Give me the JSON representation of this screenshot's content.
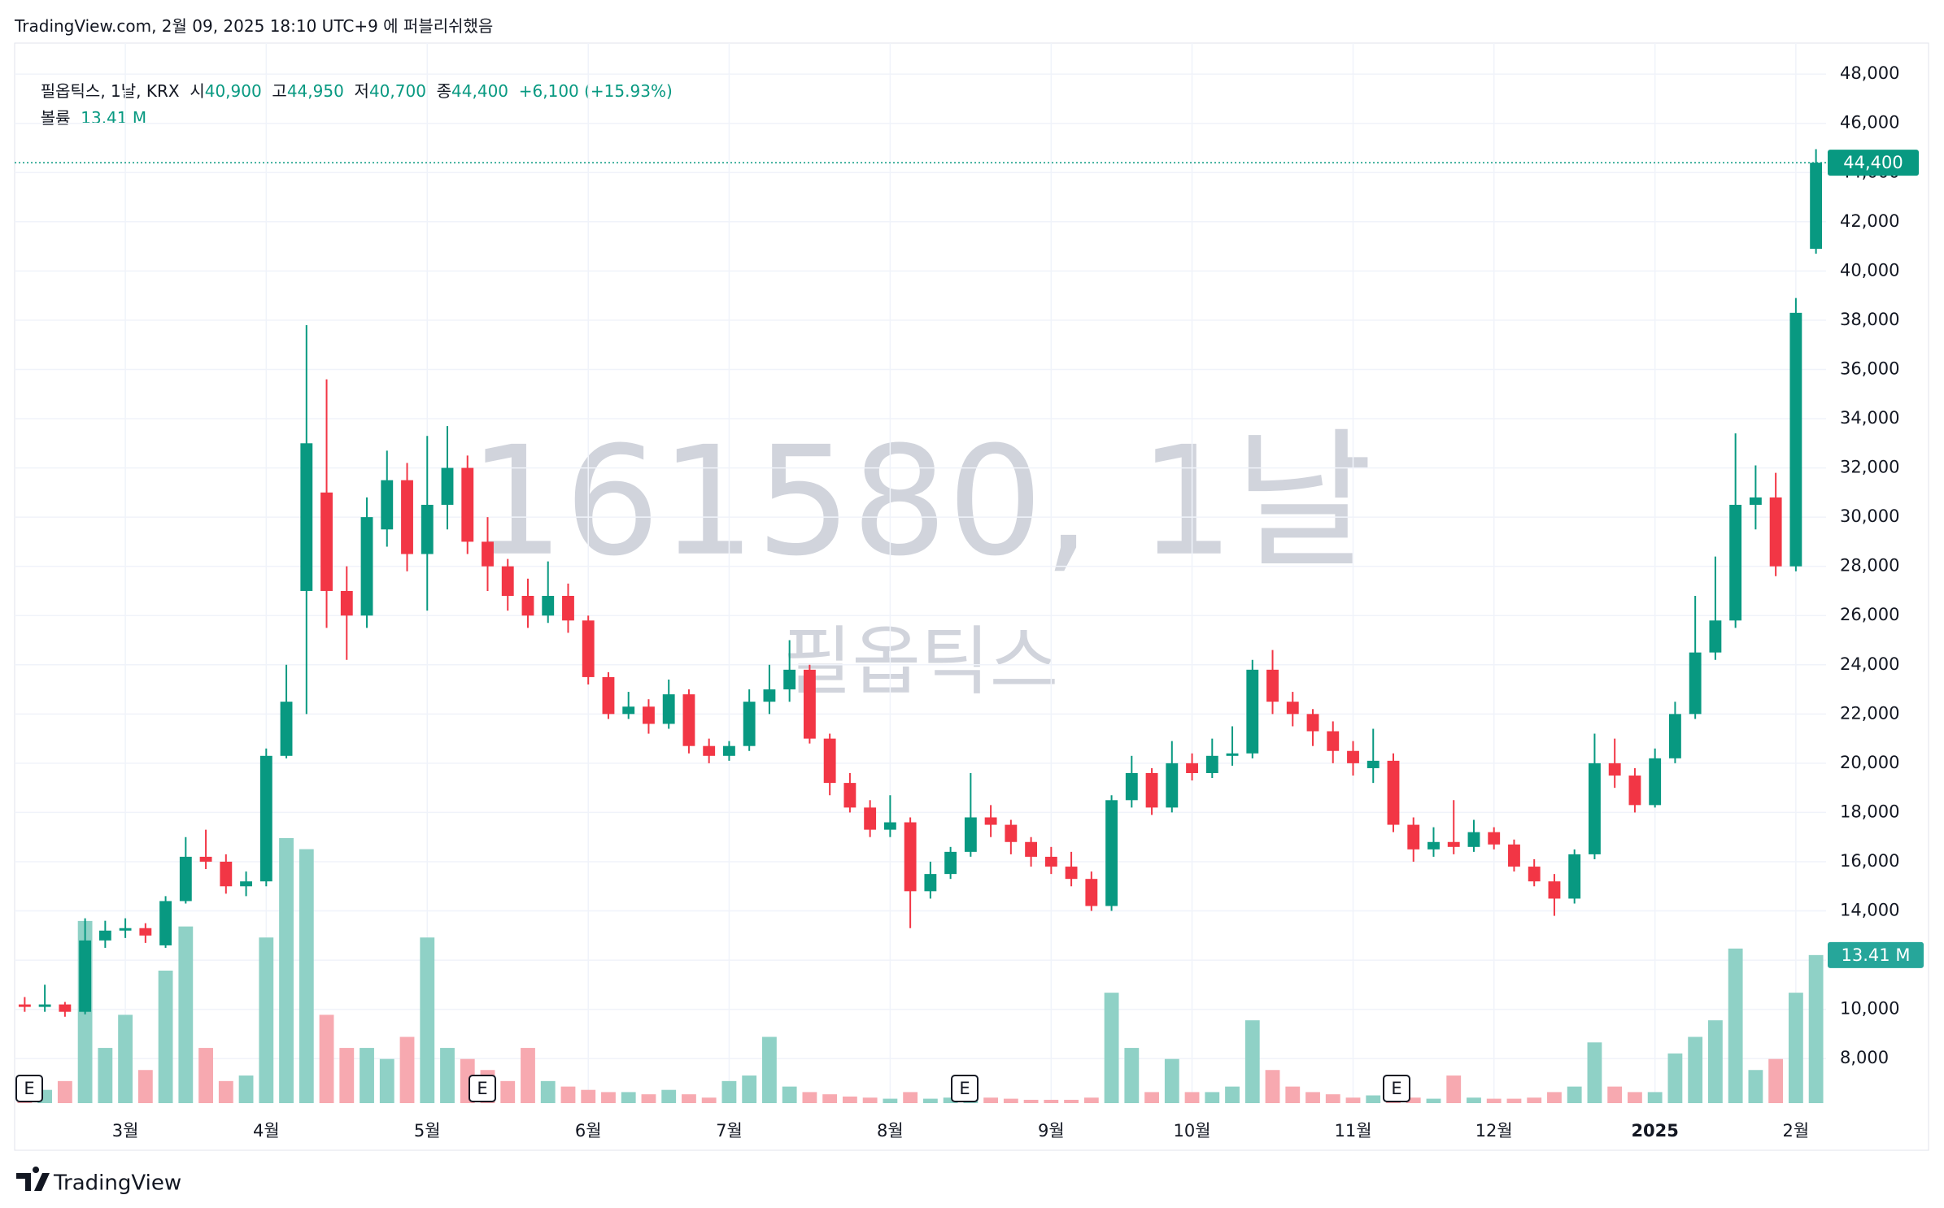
{
  "header": "TradingView.com, 2월 09, 2025 18:10 UTC+9 에 퍼블리쉬했음",
  "footer": "TradingView",
  "chart_data": {
    "type": "candlestick",
    "watermark": "161580, 1날",
    "watermark_name": "필옵틱스",
    "earnings_marker": "E",
    "legend": {
      "name": "필옵틱스, 1날, KRX",
      "open_label": "시",
      "open": {
        "value": 40900,
        "label": "40,900"
      },
      "high_label": "고",
      "high": {
        "value": 44950,
        "label": "44,950"
      },
      "low_label": "저",
      "low": {
        "value": 40700,
        "label": "40,700"
      },
      "close_label": "종",
      "close": {
        "value": 44400,
        "label": "44,400"
      },
      "change": {
        "value": 6100,
        "label": "+6,100"
      },
      "change_pct": {
        "value": 15.93,
        "label": "(+15.93%)"
      },
      "volume_name": "볼륨",
      "volume": {
        "value": 13.41,
        "label": "13.41 M"
      }
    },
    "up_color": "#089981",
    "down_color": "#f23645",
    "volume_up_color": "#8fd1c6",
    "volume_down_color": "#f7a9b0",
    "grid": true,
    "categories": [
      null,
      null,
      null,
      null,
      null,
      "3월",
      null,
      null,
      null,
      null,
      null,
      null,
      "4월",
      null,
      null,
      null,
      null,
      null,
      null,
      null,
      "5월",
      null,
      null,
      null,
      null,
      null,
      null,
      null,
      "6월",
      null,
      null,
      null,
      null,
      null,
      null,
      "7월",
      null,
      null,
      null,
      null,
      null,
      null,
      null,
      "8월",
      null,
      null,
      null,
      null,
      null,
      null,
      null,
      "9월",
      null,
      null,
      null,
      null,
      null,
      null,
      "10월",
      null,
      null,
      null,
      null,
      null,
      null,
      null,
      "11월",
      null,
      null,
      null,
      null,
      null,
      null,
      "12월",
      null,
      null,
      null,
      null,
      null,
      null,
      null,
      "2025",
      null,
      null,
      null,
      null,
      null,
      null,
      "2월",
      null
    ],
    "ohlc": [
      [
        10200,
        10500,
        9900,
        10100
      ],
      [
        10100,
        11000,
        9900,
        10200
      ],
      [
        10200,
        10300,
        9700,
        9900
      ],
      [
        9900,
        13700,
        9800,
        12800
      ],
      [
        12800,
        13600,
        12500,
        13200
      ],
      [
        13200,
        13700,
        12900,
        13300
      ],
      [
        13300,
        13500,
        12700,
        13000
      ],
      [
        12600,
        14600,
        12500,
        14400
      ],
      [
        14400,
        17000,
        14300,
        16200
      ],
      [
        16200,
        17300,
        15700,
        16000
      ],
      [
        16000,
        16300,
        14700,
        15000
      ],
      [
        15000,
        15600,
        14600,
        15200
      ],
      [
        15200,
        20600,
        15000,
        20300
      ],
      [
        20300,
        24000,
        20200,
        22500
      ],
      [
        27000,
        37800,
        22000,
        33000
      ],
      [
        31000,
        35600,
        25500,
        27000
      ],
      [
        27000,
        28000,
        24200,
        26000
      ],
      [
        26000,
        30800,
        25500,
        30000
      ],
      [
        29500,
        32700,
        28800,
        31500
      ],
      [
        31500,
        32200,
        27800,
        28500
      ],
      [
        28500,
        33300,
        26200,
        30500
      ],
      [
        30500,
        33700,
        29500,
        32000
      ],
      [
        32000,
        32500,
        28500,
        29000
      ],
      [
        29000,
        30000,
        27000,
        28000
      ],
      [
        28000,
        28300,
        26200,
        26800
      ],
      [
        26800,
        27500,
        25500,
        26000
      ],
      [
        26000,
        28200,
        25700,
        26800
      ],
      [
        26800,
        27300,
        25300,
        25800
      ],
      [
        25800,
        26000,
        23200,
        23500
      ],
      [
        23500,
        23700,
        21800,
        22000
      ],
      [
        22000,
        22900,
        21800,
        22300
      ],
      [
        22300,
        22600,
        21200,
        21600
      ],
      [
        21600,
        23400,
        21400,
        22800
      ],
      [
        22800,
        23000,
        20400,
        20700
      ],
      [
        20700,
        21000,
        20000,
        20300
      ],
      [
        20300,
        20900,
        20100,
        20700
      ],
      [
        20700,
        23000,
        20500,
        22500
      ],
      [
        22500,
        24000,
        22000,
        23000
      ],
      [
        23000,
        25000,
        22500,
        23800
      ],
      [
        23800,
        24000,
        20800,
        21000
      ],
      [
        21000,
        21200,
        18700,
        19200
      ],
      [
        19200,
        19600,
        18000,
        18200
      ],
      [
        18200,
        18500,
        17000,
        17300
      ],
      [
        17300,
        18700,
        17000,
        17600
      ],
      [
        17600,
        17800,
        13300,
        14800
      ],
      [
        14800,
        16000,
        14500,
        15500
      ],
      [
        15500,
        16600,
        15300,
        16400
      ],
      [
        16400,
        19600,
        16200,
        17800
      ],
      [
        17800,
        18300,
        17000,
        17500
      ],
      [
        17500,
        17700,
        16300,
        16800
      ],
      [
        16800,
        17000,
        15800,
        16200
      ],
      [
        16200,
        16600,
        15500,
        15800
      ],
      [
        15800,
        16400,
        15000,
        15300
      ],
      [
        15300,
        15600,
        14000,
        14200
      ],
      [
        14200,
        18700,
        14000,
        18500
      ],
      [
        18500,
        20300,
        18200,
        19600
      ],
      [
        19600,
        19800,
        17900,
        18200
      ],
      [
        18200,
        20900,
        18000,
        20000
      ],
      [
        20000,
        20400,
        19300,
        19600
      ],
      [
        19600,
        21000,
        19400,
        20300
      ],
      [
        20300,
        21500,
        19900,
        20400
      ],
      [
        20400,
        24200,
        20200,
        23800
      ],
      [
        23800,
        24600,
        22000,
        22500
      ],
      [
        22500,
        22900,
        21500,
        22000
      ],
      [
        22000,
        22200,
        20700,
        21300
      ],
      [
        21300,
        21700,
        20000,
        20500
      ],
      [
        20500,
        20900,
        19500,
        20000
      ],
      [
        19800,
        21400,
        19200,
        20100
      ],
      [
        20100,
        20400,
        17200,
        17500
      ],
      [
        17500,
        17800,
        16000,
        16500
      ],
      [
        16500,
        17400,
        16200,
        16800
      ],
      [
        16800,
        18500,
        16300,
        16600
      ],
      [
        16600,
        17700,
        16400,
        17200
      ],
      [
        17200,
        17400,
        16500,
        16700
      ],
      [
        16700,
        16900,
        15600,
        15800
      ],
      [
        15800,
        16100,
        15000,
        15200
      ],
      [
        15200,
        15500,
        13800,
        14500
      ],
      [
        14500,
        16500,
        14300,
        16300
      ],
      [
        16300,
        21200,
        16100,
        20000
      ],
      [
        20000,
        21000,
        19000,
        19500
      ],
      [
        19500,
        19800,
        18000,
        18300
      ],
      [
        18300,
        20600,
        18200,
        20200
      ],
      [
        20200,
        22500,
        20000,
        22000
      ],
      [
        22000,
        26800,
        21800,
        24500
      ],
      [
        24500,
        28400,
        24200,
        25800
      ],
      [
        25800,
        33400,
        25500,
        30500
      ],
      [
        30500,
        32100,
        29500,
        30800
      ],
      [
        30800,
        31800,
        27600,
        28000
      ],
      [
        28000,
        38900,
        27800,
        38300
      ],
      [
        40900,
        44950,
        40700,
        44400
      ]
    ],
    "volume": [
      0.8,
      1.2,
      2,
      16.5,
      5,
      8,
      3,
      12,
      16,
      5,
      2,
      2.5,
      15,
      24,
      23,
      8,
      5,
      5,
      4,
      6,
      15,
      5,
      4,
      3,
      2,
      5,
      2,
      1.5,
      1.2,
      1,
      1,
      0.8,
      1.2,
      0.8,
      0.5,
      2,
      2.5,
      6,
      1.5,
      1,
      0.8,
      0.6,
      0.5,
      0.4,
      1,
      0.4,
      0.5,
      0.8,
      0.5,
      0.4,
      0.3,
      0.3,
      0.3,
      0.5,
      10,
      5,
      1,
      4,
      1,
      1,
      1.5,
      7.5,
      3,
      1.5,
      1,
      0.8,
      0.5,
      0.7,
      1,
      0.5,
      0.4,
      2.5,
      0.5,
      0.4,
      0.4,
      0.5,
      1,
      1.5,
      5.5,
      1.5,
      1,
      1,
      4.5,
      6,
      7.5,
      14,
      3,
      4,
      10,
      13.41
    ],
    "ylim": [
      6190,
      49260
    ],
    "yticks": [
      {
        "value": 8000,
        "label": "8,000"
      },
      {
        "value": 10000,
        "label": "10,000"
      },
      {
        "value": 12000,
        "label": "12,000"
      },
      {
        "value": 14000,
        "label": "14,000"
      },
      {
        "value": 16000,
        "label": "16,000"
      },
      {
        "value": 18000,
        "label": "18,000"
      },
      {
        "value": 20000,
        "label": "20,000"
      },
      {
        "value": 22000,
        "label": "22,000"
      },
      {
        "value": 24000,
        "label": "24,000"
      },
      {
        "value": 26000,
        "label": "26,000"
      },
      {
        "value": 28000,
        "label": "28,000"
      },
      {
        "value": 30000,
        "label": "30,000"
      },
      {
        "value": 32000,
        "label": "32,000"
      },
      {
        "value": 34000,
        "label": "34,000"
      },
      {
        "value": 36000,
        "label": "36,000"
      },
      {
        "value": 38000,
        "label": "38,000"
      },
      {
        "value": 40000,
        "label": "40,000"
      },
      {
        "value": 42000,
        "label": "42,000"
      },
      {
        "value": 44000,
        "label": "44,000"
      },
      {
        "value": 46000,
        "label": "46,000"
      },
      {
        "value": 48000,
        "label": "48,000"
      }
    ]
  }
}
